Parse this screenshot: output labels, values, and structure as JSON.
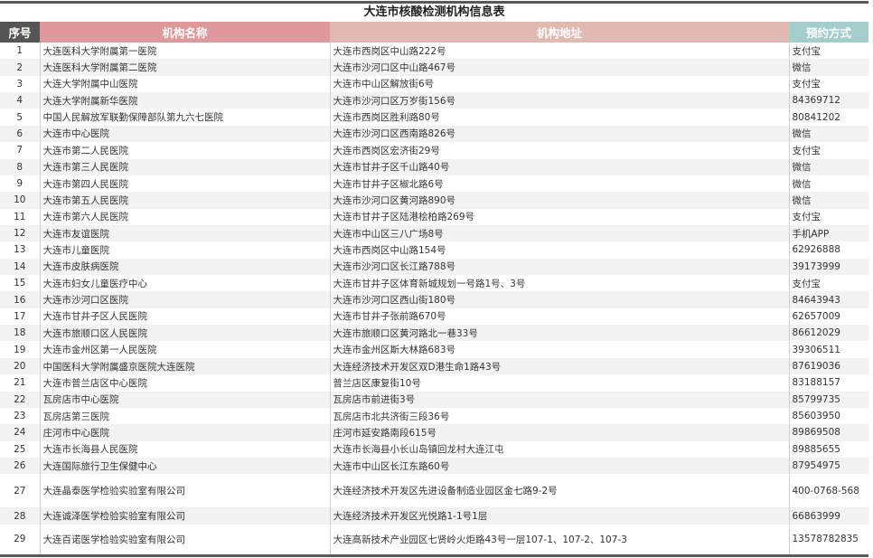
{
  "title": "大连市核酸检测机构信息表",
  "colors": {
    "header_no": "#555555",
    "header_name": "#e0999a",
    "header_addr": "#e0b9b0",
    "header_method": "#a3cecc",
    "alt_row": "#f2f2f2"
  },
  "headers": [
    "序号",
    "机构名称",
    "机构地址",
    "预约方式"
  ],
  "rows": [
    [
      "1",
      "大连医科大学附属第一医院",
      "大连市西岗区中山路222号",
      "支付宝"
    ],
    [
      "2",
      "大连医科大学附属第二医院",
      "大连市沙河口区中山路467号",
      "微信"
    ],
    [
      "3",
      "大连大学附属中山医院",
      "大连市中山区解放街6号",
      "支付宝"
    ],
    [
      "4",
      "大连大学附属新华医院",
      "大连市沙河口区万岁街156号",
      "84369712"
    ],
    [
      "5",
      "中国人民解放军联勤保障部队第九六七医院",
      "大连市西岗区胜利路80号",
      "80841202"
    ],
    [
      "6",
      "大连市中心医院",
      "大连市沙河口区西南路826号",
      "微信"
    ],
    [
      "7",
      "大连市第二人民医院",
      "大连市西岗区宏济街29号",
      "支付宝"
    ],
    [
      "8",
      "大连市第三人民医院",
      "大连市甘井子区千山路40号",
      "微信"
    ],
    [
      "9",
      "大连市第四人民医院",
      "大连市甘井子区椒北路6号",
      "微信"
    ],
    [
      "10",
      "大连市第五人民医院",
      "大连市沙河口区黄河路890号",
      "微信"
    ],
    [
      "11",
      "大连市第六人民医院",
      "大连市甘井子区陆港桧柏路269号",
      "支付宝"
    ],
    [
      "12",
      "大连市友谊医院",
      "大连市中山区三八广场8号",
      "手机APP"
    ],
    [
      "13",
      "大连市儿童医院",
      "大连市西岗区中山路154号",
      "62926888"
    ],
    [
      "14",
      "大连市皮肤病医院",
      "大连市沙河口区长江路788号",
      "39173999"
    ],
    [
      "15",
      "大连市妇女儿童医疗中心",
      "大连市甘井子区体育新城规划一号路1号、3号",
      "支付宝"
    ],
    [
      "16",
      "大连市沙河口区医院",
      "大连市沙河口区西山街180号",
      "84643943"
    ],
    [
      "17",
      "大连市甘井子区人民医院",
      "大连市甘井子张前路670号",
      "62657009"
    ],
    [
      "18",
      "大连市旅顺口区人民医院",
      "大连市旅顺口区黄河路北一巷33号",
      "86612029"
    ],
    [
      "19",
      "大连市金州区第一人民医院",
      "大连市金州区斯大林路683号",
      "39306511"
    ],
    [
      "20",
      "中国医科大学附属盛京医院大连医院",
      "大连经济技术开发区双D港生命1路43号",
      "87619036"
    ],
    [
      "21",
      "大连市普兰店区中心医院",
      "普兰店区康复街10号",
      "83188157"
    ],
    [
      "22",
      "瓦房店市中心医院",
      "瓦房店市前进街3号",
      "85799735"
    ],
    [
      "23",
      "瓦房店第三医院",
      "瓦房店市北共济街三段36号",
      "85603950"
    ],
    [
      "24",
      "庄河市中心医院",
      "庄河市延安路南段615号",
      "89869508"
    ],
    [
      "25",
      "大连市长海县人民医院",
      "大连市长海县小长山岛镇回龙村大连江屯",
      "89885655"
    ],
    [
      "26",
      "大连国际旅行卫生保健中心",
      "大连市中山区长江东路60号",
      "87954975"
    ],
    [
      "27",
      "大连晶泰医学检验实验室有限公司",
      "大连经济技术开发区先进设备制造业园区金七路9-2号",
      "400-0768-568"
    ],
    [
      "28",
      "大连诚泽医学检验实验室有限公司",
      "大连经济技术开发区光悦路1-1号1层",
      "66863999"
    ],
    [
      "29",
      "大连百诺医学检验实验室有限公司",
      "大连高新技术产业园区七贤岭火炬路43号一层107-1、107-2、107-3",
      "13578782835"
    ]
  ]
}
